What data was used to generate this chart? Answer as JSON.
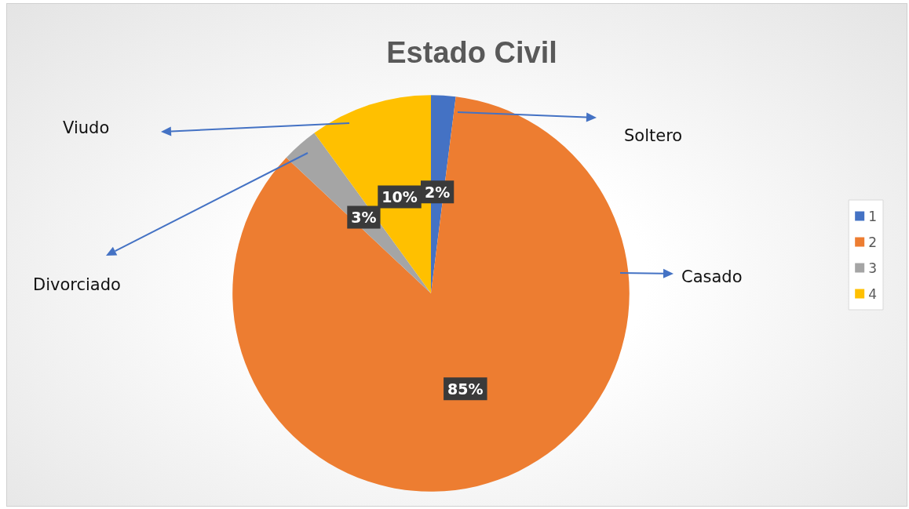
{
  "chart_data": {
    "type": "pie",
    "title": "Estado Civil",
    "categories": [
      "1",
      "2",
      "3",
      "4"
    ],
    "values": [
      2,
      85,
      3,
      10
    ],
    "colors": [
      "#4472c4",
      "#ed7d31",
      "#a5a5a5",
      "#ffc000"
    ],
    "value_labels": [
      "2%",
      "85%",
      "3%",
      "10%"
    ],
    "legend": "right",
    "annotations": [
      "Soltero",
      "Casado",
      "Divorciado",
      "Viudo"
    ]
  }
}
